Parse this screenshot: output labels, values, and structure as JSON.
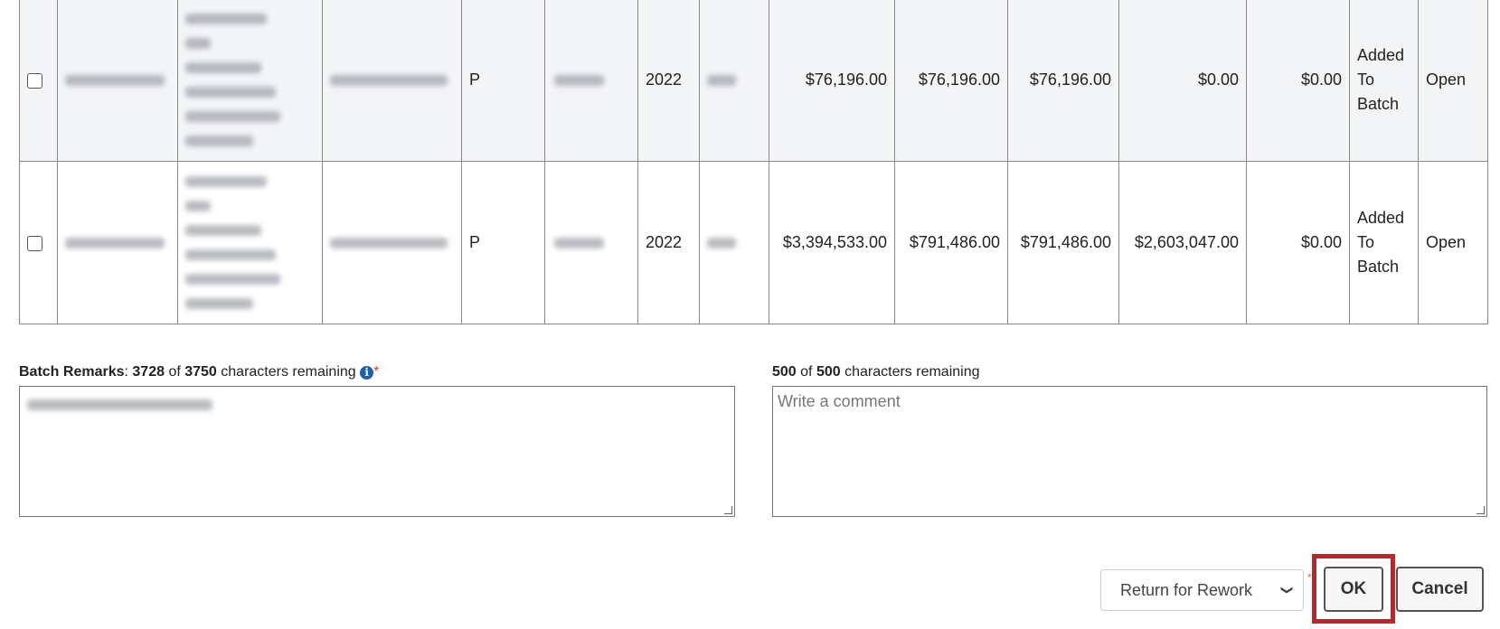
{
  "table": {
    "rows": [
      {
        "status_code": "P",
        "year": "2022",
        "amount1": "$76,196.00",
        "amount2": "$76,196.00",
        "amount3": "$76,196.00",
        "amount4": "$0.00",
        "amount5": "$0.00",
        "batch_status": "Added To Batch",
        "state": "Open"
      },
      {
        "status_code": "P",
        "year": "2022",
        "amount1": "$3,394,533.00",
        "amount2": "$791,486.00",
        "amount3": "$791,486.00",
        "amount4": "$2,603,047.00",
        "amount5": "$0.00",
        "batch_status": "Added To Batch",
        "state": "Open"
      }
    ]
  },
  "remarks": {
    "label": "Batch Remarks",
    "remaining": "3728",
    "of": "of",
    "max": "3750",
    "suffix": "characters remaining",
    "required": "*",
    "icon": "info-circle-icon"
  },
  "comment": {
    "remaining": "500",
    "of": "of",
    "max": "500",
    "suffix": "characters remaining",
    "placeholder": "Write a comment"
  },
  "actions": {
    "action_select": "Return for Rework",
    "ok": "OK",
    "cancel": "Cancel",
    "highlight_color": "#b22a2e"
  }
}
